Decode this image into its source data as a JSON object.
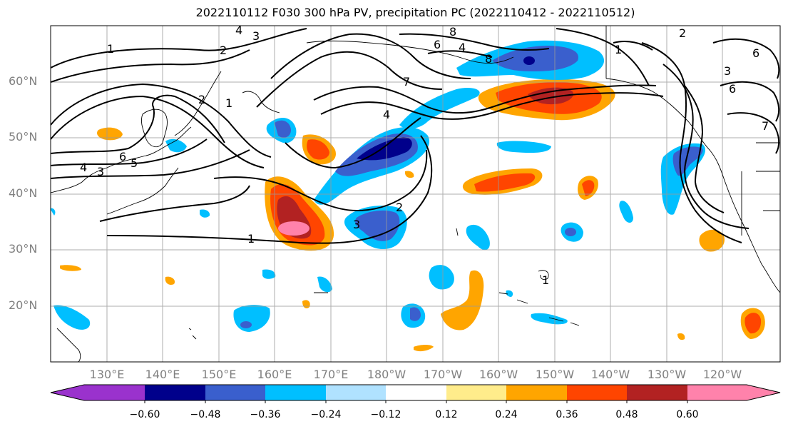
{
  "title": "2022110112 F030 300 hPa PV, precipitation PC (2022110412 - 2022110512)",
  "lat_labels": [
    "60°N",
    "50°N",
    "40°N",
    "30°N",
    "20°N"
  ],
  "lon_labels": [
    "130°E",
    "140°E",
    "150°E",
    "160°E",
    "170°E",
    "180°W",
    "170°W",
    "160°W",
    "150°W",
    "140°W",
    "130°W",
    "120°W"
  ],
  "colorbar": {
    "ticks": [
      "−0.60",
      "−0.48",
      "−0.36",
      "−0.24",
      "−0.12",
      "0.12",
      "0.24",
      "0.36",
      "0.48",
      "0.60"
    ],
    "colors": [
      "#9a32cd",
      "#00008b",
      "#3a5fcd",
      "#00bfff",
      "#b0e2ff",
      "#ffffff",
      "#ffec8b",
      "#ffa500",
      "#ff4500",
      "#b22222",
      "#ff82ab"
    ]
  },
  "contour_labels": [
    "1",
    "2",
    "3",
    "4",
    "5",
    "6",
    "7",
    "8"
  ]
}
